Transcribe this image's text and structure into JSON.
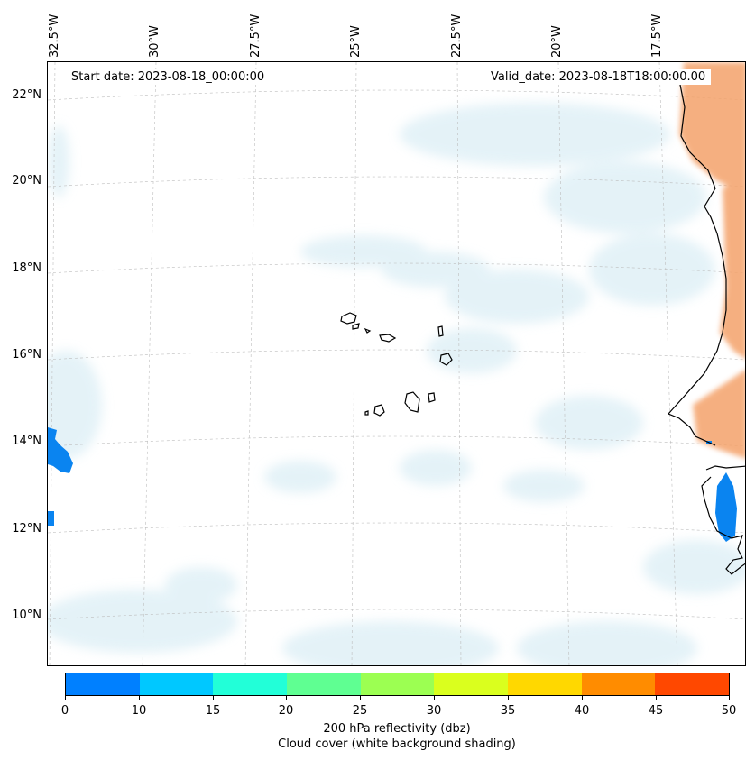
{
  "map": {
    "start_date_text": "Start date: 2023-08-18_00:00:00",
    "valid_date_text": "Valid_date: 2023-08-18T18:00:00.00",
    "longitude_labels": [
      "32.5°W",
      "30°W",
      "27.5°W",
      "25°W",
      "22.5°W",
      "20°W",
      "17.5°W"
    ],
    "latitude_labels": [
      "22°N",
      "20°N",
      "18°N",
      "16°N",
      "14°N",
      "12°N",
      "10°N"
    ],
    "land_color": "#000000",
    "reflectivity_colors": [
      "#0080ff",
      "#00c8ff",
      "#22ffd8",
      "#5fff92",
      "#9cff52",
      "#daff1e",
      "#ffd800",
      "#ff8c00",
      "#ff4800"
    ]
  },
  "colorbar": {
    "tick_labels": [
      "0",
      "10",
      "15",
      "20",
      "25",
      "30",
      "35",
      "40",
      "45",
      "50"
    ],
    "label_line1": "200 hPa reflectivity (dbz)",
    "label_line2": "Cloud cover (white background shading)"
  }
}
